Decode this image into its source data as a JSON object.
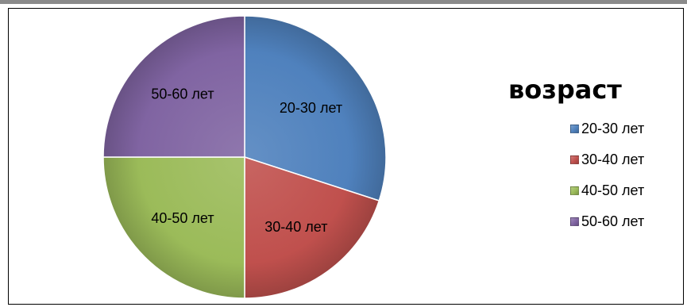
{
  "chart_data": {
    "type": "pie",
    "title": "возраст",
    "categories": [
      "20-30 лет",
      "30-40 лет",
      "40-50 лет",
      "50-60 лет"
    ],
    "values": [
      30,
      20,
      25,
      25
    ],
    "colors": [
      "#4f81bd",
      "#c0504d",
      "#9bbb59",
      "#8064a2"
    ],
    "legend_position": "right"
  }
}
